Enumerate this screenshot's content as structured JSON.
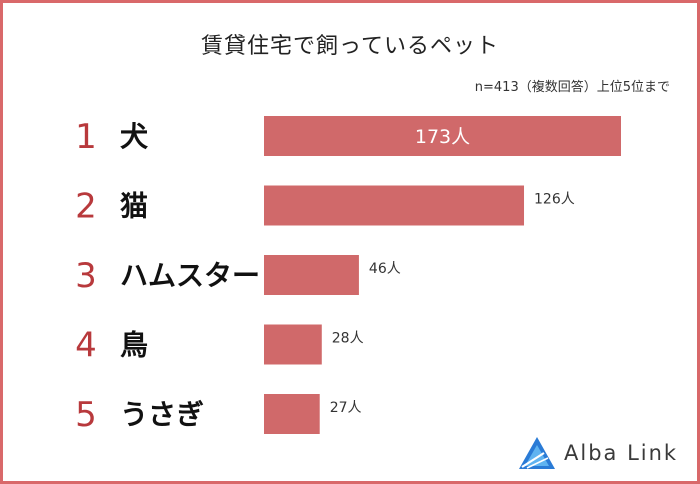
{
  "title": "賃貸住宅で飼っているペット",
  "note": "n=413（複数回答）上位5位まで",
  "logo": {
    "text": "Alba Link",
    "icon": "alba-link-triangle-logo",
    "accent": "#2a7bd6"
  },
  "colors": {
    "bar": "#d0696a",
    "rank": "#b8393c",
    "border": "#d9686a"
  },
  "chart_data": {
    "type": "bar",
    "orientation": "horizontal",
    "ranks": [
      "1",
      "2",
      "3",
      "4",
      "5"
    ],
    "categories": [
      "犬",
      "猫",
      "ハムスター",
      "鳥",
      "うさぎ"
    ],
    "values": [
      173,
      126,
      46,
      28,
      27
    ],
    "value_labels": [
      "173人",
      "126人",
      "46人",
      "28人",
      "27人"
    ],
    "title": "賃貸住宅で飼っているペット",
    "unit": "人",
    "xlim": [
      0,
      173
    ],
    "grid": false,
    "legend": "none"
  }
}
